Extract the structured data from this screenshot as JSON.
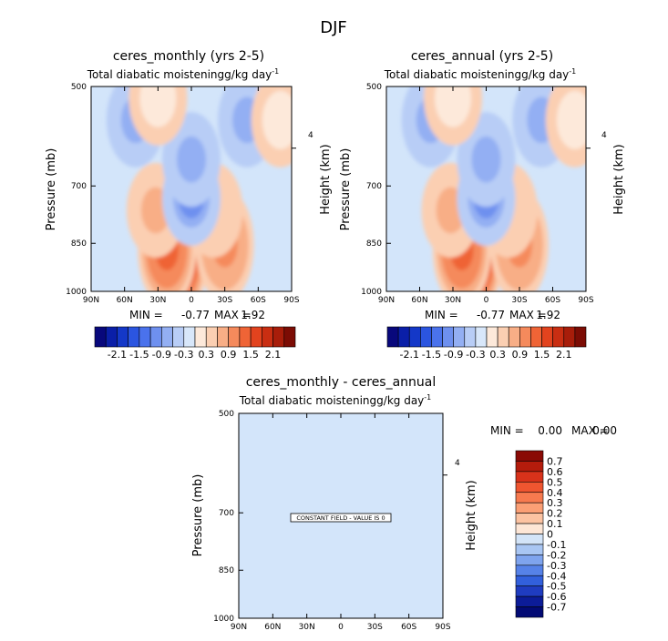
{
  "figure_title": "DJF",
  "panels": [
    {
      "title": "ceres_monthly (yrs 2-5)",
      "subtitle": "Total diabatic moistening",
      "units": "g/kg day",
      "units_exp": "-1",
      "ylabel": "Pressure (mb)",
      "ylabel_right": "Height (km)",
      "right_tick": "4",
      "min_label": "MIN =",
      "min_value": "-0.77",
      "max_label": "MAX =",
      "max_value": "1.92"
    },
    {
      "title": "ceres_annual (yrs 2-5)",
      "subtitle": "Total diabatic moistening",
      "units": "g/kg day",
      "units_exp": "-1",
      "ylabel": "Pressure (mb)",
      "ylabel_right": "Height (km)",
      "right_tick": "4",
      "min_label": "MIN =",
      "min_value": "-0.77",
      "max_label": "MAX =",
      "max_value": "1.92"
    },
    {
      "title": "ceres_monthly - ceres_annual",
      "subtitle": "Total diabatic moistening",
      "units": "g/kg day",
      "units_exp": "-1",
      "ylabel": "Pressure (mb)",
      "ylabel_right": "Height (km)",
      "right_tick": "4",
      "min_label": "MIN =",
      "min_value": "0.00",
      "max_label": "MAX =",
      "max_value": "0.00",
      "note": "CONSTANT FIELD - VALUE IS 0"
    }
  ],
  "chart_data": [
    {
      "type": "heatmap",
      "title": "ceres_monthly (yrs 2-5)",
      "x_ticks": [
        "90N",
        "60N",
        "30N",
        "0",
        "30S",
        "60S",
        "90S"
      ],
      "x_values": [
        90,
        60,
        30,
        0,
        -30,
        -60,
        -90
      ],
      "y_ticks": [
        "500",
        "700",
        "850",
        "1000"
      ],
      "y_values": [
        500,
        700,
        850,
        1000
      ],
      "y_scale": "log",
      "y_inverted": true,
      "min": -0.77,
      "max": 1.92,
      "features": [
        {
          "lat": 12,
          "p": 900,
          "value": 1.92
        },
        {
          "lat": 22,
          "p": 870,
          "value": 1.2
        },
        {
          "lat": 32,
          "p": 760,
          "value": 0.5
        },
        {
          "lat": -30,
          "p": 855,
          "value": 0.9
        },
        {
          "lat": -20,
          "p": 760,
          "value": 0.4
        },
        {
          "lat": 0,
          "p": 730,
          "value": -0.77
        },
        {
          "lat": 0,
          "p": 640,
          "value": -0.5
        },
        {
          "lat": 50,
          "p": 560,
          "value": -0.5
        },
        {
          "lat": -50,
          "p": 560,
          "value": -0.5
        },
        {
          "lat": 30,
          "p": 520,
          "value": 0.2
        },
        {
          "lat": -80,
          "p": 560,
          "value": 0.2
        }
      ],
      "colorbar": {
        "labels": [
          "-2.1",
          "-1.5",
          "-0.9",
          "-0.3",
          "0.3",
          "0.9",
          "1.5",
          "2.1"
        ],
        "colors": [
          "#08087c",
          "#0a1fa8",
          "#1438c8",
          "#2b55e0",
          "#4a72ec",
          "#6e90ef",
          "#93aff3",
          "#b8cdf6",
          "#d8e7fa",
          "#fde9da",
          "#fbcfb2",
          "#f8ae86",
          "#f58a5c",
          "#ef6436",
          "#e2431e",
          "#c92e12",
          "#a81d0a",
          "#7c0c04"
        ]
      }
    },
    {
      "type": "heatmap",
      "title": "ceres_annual (yrs 2-5)",
      "x_ticks": [
        "90N",
        "60N",
        "30N",
        "0",
        "30S",
        "60S",
        "90S"
      ],
      "x_values": [
        90,
        60,
        30,
        0,
        -30,
        -60,
        -90
      ],
      "y_ticks": [
        "500",
        "700",
        "850",
        "1000"
      ],
      "y_values": [
        500,
        700,
        850,
        1000
      ],
      "y_scale": "log",
      "y_inverted": true,
      "min": -0.77,
      "max": 1.92,
      "features": [
        {
          "lat": 12,
          "p": 900,
          "value": 1.92
        },
        {
          "lat": 22,
          "p": 870,
          "value": 1.2
        },
        {
          "lat": 32,
          "p": 760,
          "value": 0.5
        },
        {
          "lat": -30,
          "p": 855,
          "value": 0.9
        },
        {
          "lat": -20,
          "p": 760,
          "value": 0.4
        },
        {
          "lat": 0,
          "p": 730,
          "value": -0.77
        },
        {
          "lat": 0,
          "p": 640,
          "value": -0.5
        },
        {
          "lat": 50,
          "p": 560,
          "value": -0.5
        },
        {
          "lat": -50,
          "p": 560,
          "value": -0.5
        },
        {
          "lat": 30,
          "p": 520,
          "value": 0.2
        },
        {
          "lat": -80,
          "p": 560,
          "value": 0.2
        }
      ],
      "colorbar": {
        "labels": [
          "-2.1",
          "-1.5",
          "-0.9",
          "-0.3",
          "0.3",
          "0.9",
          "1.5",
          "2.1"
        ],
        "colors": [
          "#08087c",
          "#0a1fa8",
          "#1438c8",
          "#2b55e0",
          "#4a72ec",
          "#6e90ef",
          "#93aff3",
          "#b8cdf6",
          "#d8e7fa",
          "#fde9da",
          "#fbcfb2",
          "#f8ae86",
          "#f58a5c",
          "#ef6436",
          "#e2431e",
          "#c92e12",
          "#a81d0a",
          "#7c0c04"
        ]
      }
    },
    {
      "type": "heatmap",
      "title": "ceres_monthly - ceres_annual",
      "x_ticks": [
        "90N",
        "60N",
        "30N",
        "0",
        "30S",
        "60S",
        "90S"
      ],
      "x_values": [
        90,
        60,
        30,
        0,
        -30,
        -60,
        -90
      ],
      "y_ticks": [
        "500",
        "700",
        "850",
        "1000"
      ],
      "y_values": [
        500,
        700,
        850,
        1000
      ],
      "y_scale": "log",
      "y_inverted": true,
      "min": 0.0,
      "max": 0.0,
      "constant_value": 0,
      "colorbar": {
        "orientation": "vertical",
        "labels": [
          "0.7",
          "0.6",
          "0.5",
          "0.4",
          "0.3",
          "0.2",
          "0.1",
          "0",
          "-0.1",
          "-0.2",
          "-0.3",
          "-0.4",
          "-0.5",
          "-0.6",
          "-0.7"
        ],
        "colors": [
          "#8a0a05",
          "#b41c0c",
          "#d8321a",
          "#ef5530",
          "#f77a4f",
          "#fb9f75",
          "#fcc3a2",
          "#fde6d6",
          "#d3e4f8",
          "#a9c6f3",
          "#7fa4ee",
          "#5682e8",
          "#3260dc",
          "#1f3cc0",
          "#0c1c98",
          "#020a74"
        ]
      }
    }
  ],
  "colors": {
    "background": "#ffffff",
    "field_base": "#d3e5fa"
  }
}
